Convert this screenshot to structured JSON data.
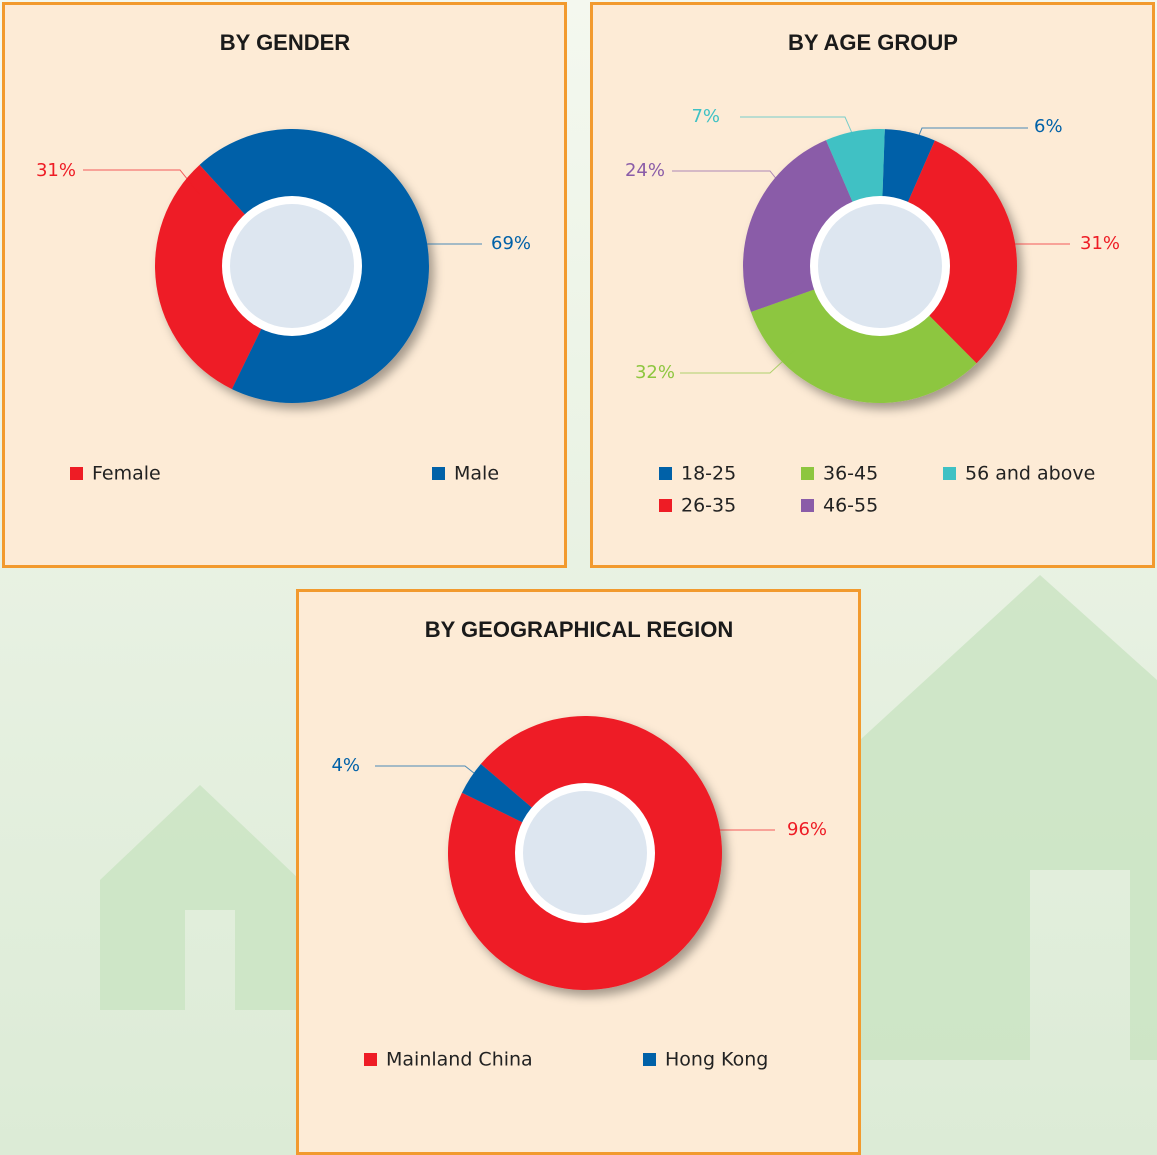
{
  "chart_data": [
    {
      "type": "pie",
      "title": "BY GENDER",
      "categories": [
        "Female",
        "Male"
      ],
      "values": [
        31,
        69
      ],
      "value_labels": [
        "31%",
        "69%"
      ],
      "colors": [
        "#ee1c25",
        "#0061a8"
      ]
    },
    {
      "type": "pie",
      "title": "BY AGE GROUP",
      "categories": [
        "18-25",
        "26-35",
        "36-45",
        "46-55",
        "56 and above"
      ],
      "values": [
        6,
        31,
        32,
        24,
        7
      ],
      "value_labels": [
        "6%",
        "31%",
        "32%",
        "24%",
        "7%"
      ],
      "colors": [
        "#0061a8",
        "#ee1c25",
        "#8dc63f",
        "#8a5ca8",
        "#3fc1c4"
      ]
    },
    {
      "type": "pie",
      "title": "BY GEOGRAPHICAL REGION",
      "categories": [
        "Mainland China",
        "Hong Kong"
      ],
      "values": [
        96,
        4
      ],
      "value_labels": [
        "96%",
        "4%"
      ],
      "colors": [
        "#ee1c25",
        "#0061a8"
      ]
    }
  ]
}
